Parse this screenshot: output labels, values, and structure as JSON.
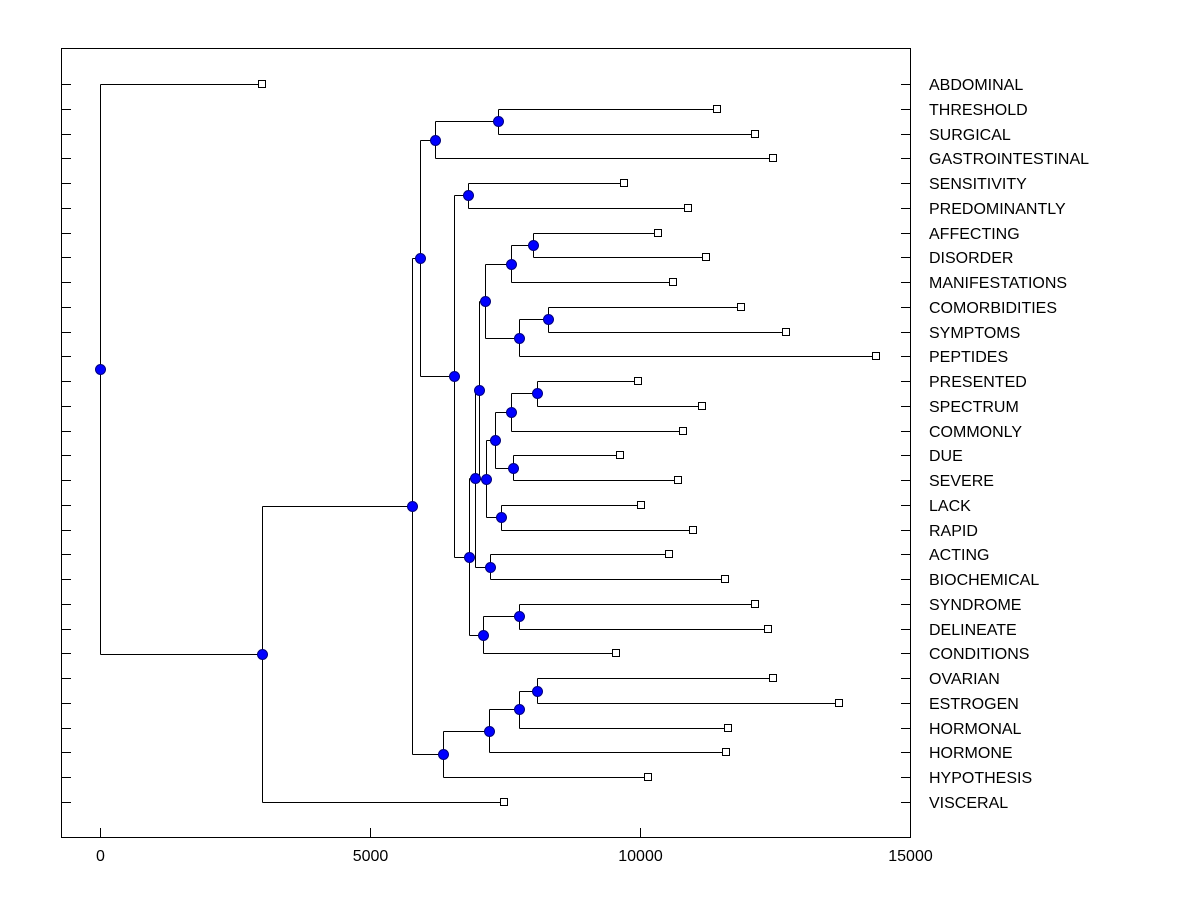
{
  "chart_data": {
    "type": "dendrogram",
    "title": "",
    "xlabel": "",
    "ylabel": "",
    "xlim": [
      -700,
      15050
    ],
    "xticks": [
      0,
      5000,
      10000,
      15000
    ],
    "xtick_labels": [
      "0",
      "5000",
      "10000",
      "15000"
    ],
    "grid": false,
    "colors": {
      "node_fill": "#0000ff",
      "node_stroke": "#000080",
      "line": "#000000",
      "leaf_fill": "#ffffff"
    },
    "leaves": [
      {
        "label": "ABDOMINAL",
        "x": 3000
      },
      {
        "label": "THRESHOLD",
        "x": 11420
      },
      {
        "label": "SURGICAL",
        "x": 12130
      },
      {
        "label": "GASTROINTESTINAL",
        "x": 12460
      },
      {
        "label": "SENSITIVITY",
        "x": 9700
      },
      {
        "label": "PREDOMINANTLY",
        "x": 10890
      },
      {
        "label": "AFFECTING",
        "x": 10330
      },
      {
        "label": "DISORDER",
        "x": 11220
      },
      {
        "label": "MANIFESTATIONS",
        "x": 10610
      },
      {
        "label": "COMORBIDITIES",
        "x": 11870
      },
      {
        "label": "SYMPTOMS",
        "x": 12700
      },
      {
        "label": "PEPTIDES",
        "x": 14370
      },
      {
        "label": "PRESENTED",
        "x": 9960
      },
      {
        "label": "SPECTRUM",
        "x": 11150
      },
      {
        "label": "COMMONLY",
        "x": 10800
      },
      {
        "label": "DUE",
        "x": 9630
      },
      {
        "label": "SEVERE",
        "x": 10700
      },
      {
        "label": "LACK",
        "x": 10020
      },
      {
        "label": "RAPID",
        "x": 10980
      },
      {
        "label": "ACTING",
        "x": 10540
      },
      {
        "label": "BIOCHEMICAL",
        "x": 11570
      },
      {
        "label": "SYNDROME",
        "x": 12130
      },
      {
        "label": "DELINEATE",
        "x": 12370
      },
      {
        "label": "CONDITIONS",
        "x": 9560
      },
      {
        "label": "OVARIAN",
        "x": 12460
      },
      {
        "label": "ESTROGEN",
        "x": 13690
      },
      {
        "label": "HORMONAL",
        "x": 11630
      },
      {
        "label": "HORMONE",
        "x": 11590
      },
      {
        "label": "HYPOTHESIS",
        "x": 10150
      },
      {
        "label": "VISCERAL",
        "x": 7480
      }
    ],
    "nodes": [
      {
        "id": "n0",
        "x": 0,
        "children": [
          "L0",
          "n1"
        ]
      },
      {
        "id": "n1",
        "x": 3000,
        "children": [
          "n2",
          "L29"
        ]
      },
      {
        "id": "n2",
        "x": 5780,
        "children": [
          "n3",
          "n20"
        ]
      },
      {
        "id": "n3",
        "x": 5930,
        "children": [
          "n4",
          "n6"
        ]
      },
      {
        "id": "n4",
        "x": 6200,
        "children": [
          "n5",
          "L3"
        ]
      },
      {
        "id": "n5",
        "x": 7370,
        "children": [
          "L1",
          "L2"
        ]
      },
      {
        "id": "n6",
        "x": 6560,
        "children": [
          "n7",
          "n8"
        ]
      },
      {
        "id": "n7",
        "x": 6810,
        "children": [
          "L4",
          "L5"
        ]
      },
      {
        "id": "n8",
        "x": 6830,
        "children": [
          "n9",
          "n17"
        ]
      },
      {
        "id": "n9",
        "x": 6940,
        "children": [
          "n10",
          "n16"
        ]
      },
      {
        "id": "n10",
        "x": 7020,
        "children": [
          "n11",
          "n13"
        ]
      },
      {
        "id": "n11",
        "x": 7130,
        "children": [
          "n12",
          "n14"
        ]
      },
      {
        "id": "n12",
        "x": 7610,
        "children": [
          "n15",
          "L8"
        ]
      },
      {
        "id": "n15",
        "x": 8020,
        "children": [
          "L6",
          "L7"
        ]
      },
      {
        "id": "n14",
        "x": 7760,
        "children": [
          "n18",
          "L11"
        ]
      },
      {
        "id": "n18",
        "x": 8300,
        "children": [
          "L9",
          "L10"
        ]
      },
      {
        "id": "n13",
        "x": 7150,
        "children": [
          "n19",
          "n21"
        ]
      },
      {
        "id": "n19",
        "x": 7310,
        "children": [
          "n22",
          "n23"
        ]
      },
      {
        "id": "n22",
        "x": 7610,
        "children": [
          "n24",
          "L14"
        ]
      },
      {
        "id": "n24",
        "x": 8090,
        "children": [
          "L12",
          "L13"
        ]
      },
      {
        "id": "n23",
        "x": 7650,
        "children": [
          "L15",
          "L16"
        ]
      },
      {
        "id": "n21",
        "x": 7430,
        "children": [
          "L17",
          "L18"
        ]
      },
      {
        "id": "n16",
        "x": 7220,
        "children": [
          "L19",
          "L20"
        ]
      },
      {
        "id": "n17",
        "x": 7090,
        "children": [
          "n25",
          "L23"
        ]
      },
      {
        "id": "n25",
        "x": 7760,
        "children": [
          "L21",
          "L22"
        ]
      },
      {
        "id": "n20",
        "x": 6350,
        "children": [
          "n26",
          "L28"
        ]
      },
      {
        "id": "n26",
        "x": 7200,
        "children": [
          "n27",
          "L27"
        ]
      },
      {
        "id": "n27",
        "x": 7760,
        "children": [
          "n28",
          "L26"
        ]
      },
      {
        "id": "n28",
        "x": 8090,
        "children": [
          "L24",
          "L25"
        ]
      }
    ]
  }
}
